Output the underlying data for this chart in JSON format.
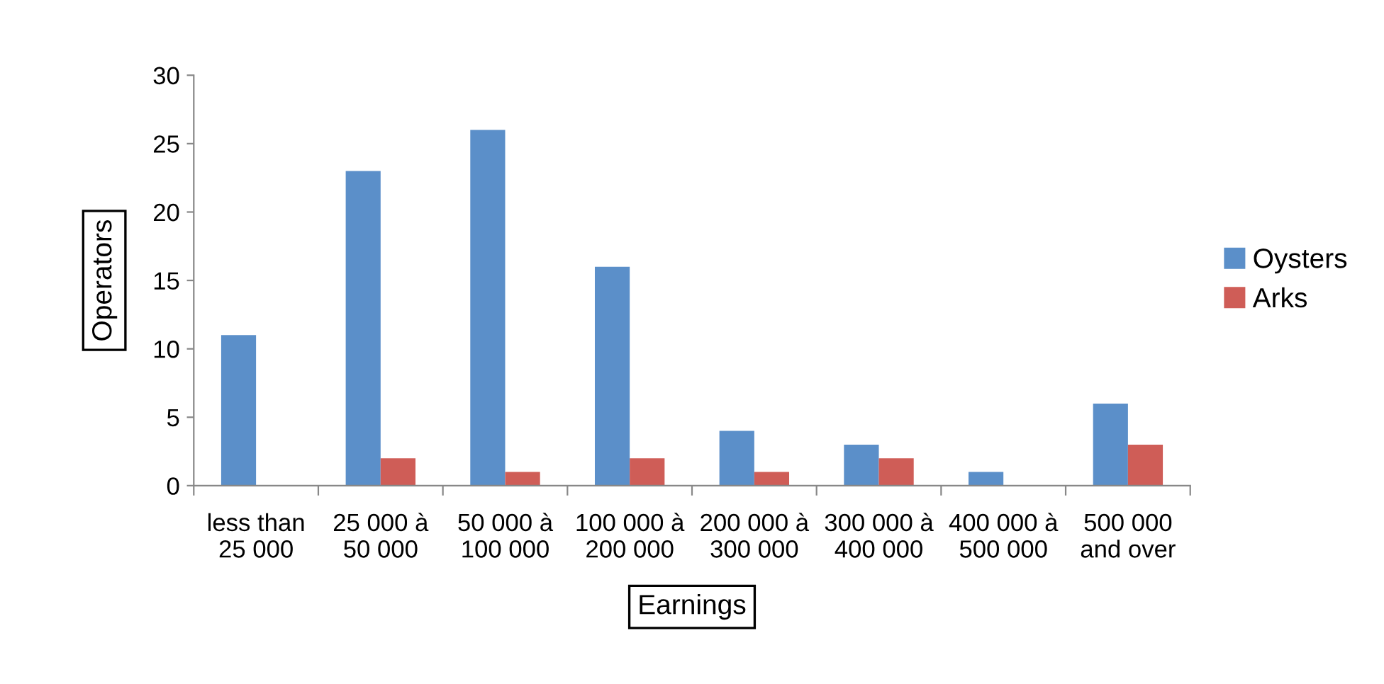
{
  "chart_data": {
    "type": "bar",
    "xlabel": "Earnings",
    "ylabel": "Operators",
    "categories": [
      "less than\n25 000",
      "25 000 à\n50 000",
      "50 000 à\n100 000",
      "100 000 à\n200 000",
      "200 000 à\n300 000",
      "300 000 à\n400 000",
      "400 000 à\n500 000",
      "500 000\nand over"
    ],
    "series": [
      {
        "name": "Oysters",
        "color": "#5b8fc9",
        "values": [
          11,
          23,
          26,
          16,
          4,
          3,
          1,
          6
        ]
      },
      {
        "name": "Arks",
        "color": "#cf5d57",
        "values": [
          0,
          2,
          1,
          2,
          1,
          2,
          0,
          3
        ]
      }
    ],
    "ylim": [
      0,
      30
    ],
    "yticks": [
      0,
      5,
      10,
      15,
      20,
      25,
      30
    ],
    "grid": false,
    "legend": "right"
  }
}
